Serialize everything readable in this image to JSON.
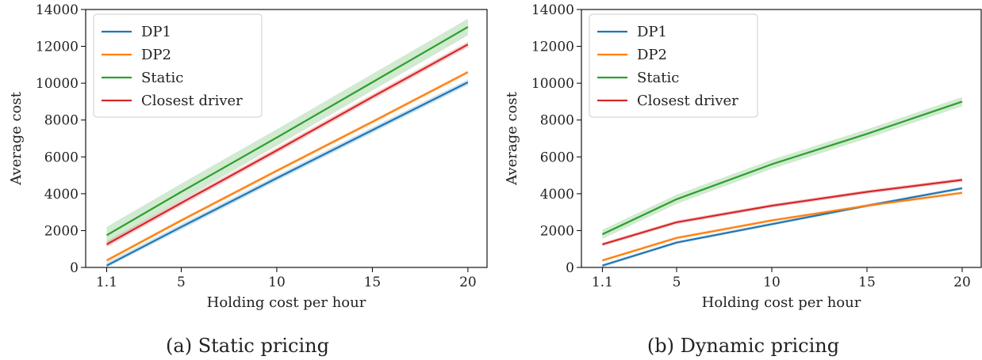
{
  "colors": {
    "DP1": "#1f77b4",
    "DP2": "#ff7f0e",
    "Static": "#2ca02c",
    "Closest driver": "#d62728"
  },
  "chart_data": [
    {
      "type": "line",
      "caption": "(a) Static pricing",
      "xlabel": "Holding cost per hour",
      "ylabel": "Average cost",
      "x": [
        1.1,
        5,
        10,
        15,
        20
      ],
      "x_ticks": [
        "1.1",
        "5",
        "10",
        "15",
        "20"
      ],
      "xlim": [
        0,
        21
      ],
      "ylim": [
        0,
        14000
      ],
      "y_ticks": [
        0,
        2000,
        4000,
        6000,
        8000,
        10000,
        12000,
        14000
      ],
      "legend_position": "upper-left",
      "series": [
        {
          "name": "DP1",
          "values": [
            100,
            2200,
            4850,
            7450,
            10050
          ],
          "band": 150
        },
        {
          "name": "DP2",
          "values": [
            380,
            2550,
            5250,
            7900,
            10600
          ],
          "band": 100
        },
        {
          "name": "Static",
          "values": [
            1750,
            4100,
            7050,
            10050,
            13050
          ],
          "band": 450
        },
        {
          "name": "Closest driver",
          "values": [
            1250,
            3500,
            6350,
            9250,
            12100
          ],
          "band": 150
        }
      ]
    },
    {
      "type": "line",
      "caption": "(b) Dynamic pricing",
      "xlabel": "Holding cost per hour",
      "ylabel": "Average cost",
      "x": [
        1.1,
        5,
        10,
        15,
        20
      ],
      "x_ticks": [
        "1.1",
        "5",
        "10",
        "15",
        "20"
      ],
      "xlim": [
        0,
        21
      ],
      "ylim": [
        0,
        14000
      ],
      "y_ticks": [
        0,
        2000,
        4000,
        6000,
        8000,
        10000,
        12000,
        14000
      ],
      "legend_position": "upper-left",
      "series": [
        {
          "name": "DP1",
          "values": [
            100,
            1350,
            2350,
            3350,
            4300
          ],
          "band": 80
        },
        {
          "name": "DP2",
          "values": [
            380,
            1600,
            2550,
            3350,
            4050
          ],
          "band": 80
        },
        {
          "name": "Static",
          "values": [
            1800,
            3700,
            5600,
            7250,
            9000
          ],
          "band": 250
        },
        {
          "name": "Closest driver",
          "values": [
            1250,
            2450,
            3350,
            4100,
            4750
          ],
          "band": 100
        }
      ]
    }
  ]
}
